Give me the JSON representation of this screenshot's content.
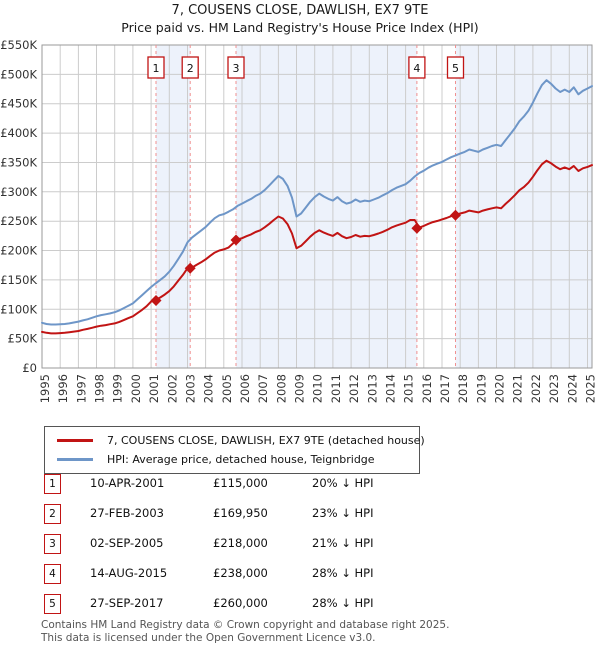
{
  "title": "7, COUSENS CLOSE, DAWLISH, EX7 9TE",
  "subtitle": "Price paid vs. HM Land Registry's House Price Index (HPI)",
  "chart_data": {
    "type": "line",
    "x_axis": {
      "start_year": 1995,
      "end_frac": 2025.25,
      "tick_labels": [
        "1995",
        "1996",
        "1997",
        "1998",
        "1999",
        "2000",
        "2001",
        "2002",
        "2003",
        "2004",
        "2005",
        "2006",
        "2007",
        "2008",
        "2009",
        "2010",
        "2011",
        "2012",
        "2013",
        "2014",
        "2015",
        "2016",
        "2017",
        "2018",
        "2019",
        "2020",
        "2021",
        "2022",
        "2023",
        "2024",
        "2025"
      ]
    },
    "y_axis": {
      "min_k": 0,
      "max_k": 550,
      "step_k": 50,
      "tick_labels": [
        "£0",
        "£50K",
        "£100K",
        "£150K",
        "£200K",
        "£250K",
        "£300K",
        "£350K",
        "£400K",
        "£450K",
        "£500K",
        "£550K"
      ]
    },
    "grid": true,
    "legend_position": "below",
    "colors": {
      "property": "#c11414",
      "hpi": "#6e96c8",
      "band": "#edf2fb",
      "sale_line": "#f09090",
      "sale_box_border": "#c11414",
      "grid": "#cccccc",
      "plot_border": "#9a9a9a"
    },
    "shaded_bands": [
      [
        2001.27,
        2003.15
      ],
      [
        2005.67,
        2015.62
      ],
      [
        2017.74,
        2025.25
      ]
    ],
    "series": [
      {
        "name": "7, COUSENS CLOSE, DAWLISH, EX7 9TE (detached house)",
        "color": "#c11414",
        "x_start": 1995.0,
        "x_step": 0.25,
        "values_gbp_thousands": [
          61.5,
          60,
          59,
          59,
          59.5,
          60,
          61,
          62,
          63,
          65,
          66.5,
          68.5,
          70.5,
          72,
          73,
          74.5,
          76,
          78.5,
          81.5,
          85,
          88,
          93.5,
          99,
          105,
          113,
          116,
          120,
          125,
          131,
          139,
          149,
          158.5,
          170,
          171,
          175.5,
          180,
          185,
          191,
          196.5,
          200,
          202,
          205,
          212,
          219,
          221,
          224.5,
          227.5,
          231.5,
          234.5,
          239.5,
          245.5,
          252,
          258,
          254.5,
          245,
          229,
          204,
          208,
          215.5,
          223.5,
          230,
          234.5,
          230.5,
          227.5,
          225,
          230,
          224.5,
          221,
          223,
          226.5,
          223.5,
          225,
          224.5,
          226.5,
          229,
          232,
          235.5,
          239.5,
          242.5,
          245,
          247.5,
          252,
          252,
          239,
          242,
          245.5,
          248.5,
          250.5,
          253,
          255.5,
          258.5,
          260.5,
          263,
          265,
          268,
          266.5,
          265,
          268,
          270,
          272,
          273.5,
          272,
          279.5,
          286.5,
          294,
          302.5,
          308,
          315.5,
          325.5,
          337,
          347,
          353,
          348.5,
          343,
          338.5,
          341.5,
          338.5,
          344,
          335.5,
          340,
          342.5,
          345.5
        ]
      },
      {
        "name": "HPI: Average price, detached house, Teignbridge",
        "color": "#6e96c8",
        "x_start": 1995.0,
        "x_step": 0.25,
        "values_gbp_thousands": [
          77,
          75,
          74,
          74,
          74.5,
          75,
          76,
          77.5,
          79,
          81,
          83,
          85.5,
          88,
          90,
          91.5,
          93,
          95,
          98,
          102,
          106,
          110,
          117,
          124,
          131,
          138,
          144,
          150,
          156,
          164,
          174,
          186,
          198,
          214,
          222,
          228,
          234,
          240,
          248,
          255,
          260,
          262,
          266,
          270,
          276,
          280,
          284,
          288,
          293,
          297,
          303,
          311,
          319,
          327,
          322,
          310,
          290,
          258,
          263,
          273,
          283,
          291,
          297,
          292,
          288,
          285,
          291,
          284,
          280,
          282,
          287,
          283,
          285,
          284,
          287,
          290,
          294,
          298,
          303,
          307,
          310,
          313,
          319,
          326,
          332,
          336,
          341,
          345,
          348,
          351,
          355,
          359,
          362,
          365,
          368,
          372,
          370,
          368,
          372,
          375,
          378,
          380,
          378,
          388,
          398,
          408,
          420,
          428,
          438,
          452,
          468,
          482,
          490,
          484,
          476,
          470,
          474,
          470,
          478,
          466,
          472,
          476,
          480
        ]
      }
    ],
    "sales": [
      {
        "n": "1",
        "date": "10-APR-2001",
        "x": 2001.27,
        "price_k": 115,
        "price_label": "£115,000",
        "hpi_diff": "20% ↓ HPI"
      },
      {
        "n": "2",
        "date": "27-FEB-2003",
        "x": 2003.15,
        "price_k": 169.95,
        "price_label": "£169,950",
        "hpi_diff": "23% ↓ HPI"
      },
      {
        "n": "3",
        "date": "02-SEP-2005",
        "x": 2005.67,
        "price_k": 218,
        "price_label": "£218,000",
        "hpi_diff": "21% ↓ HPI"
      },
      {
        "n": "4",
        "date": "14-AUG-2015",
        "x": 2015.62,
        "price_k": 238,
        "price_label": "£238,000",
        "hpi_diff": "28% ↓ HPI"
      },
      {
        "n": "5",
        "date": "27-SEP-2017",
        "x": 2017.74,
        "price_k": 260,
        "price_label": "£260,000",
        "hpi_diff": "28% ↓ HPI"
      }
    ]
  },
  "legend": {
    "entries": [
      {
        "label": "7, COUSENS CLOSE, DAWLISH, EX7 9TE (detached house)",
        "color": "#c11414"
      },
      {
        "label": "HPI: Average price, detached house, Teignbridge",
        "color": "#6e96c8"
      }
    ]
  },
  "footer": {
    "line1": "Contains HM Land Registry data © Crown copyright and database right 2025.",
    "line2": "This data is licensed under the Open Government Licence v3.0."
  }
}
